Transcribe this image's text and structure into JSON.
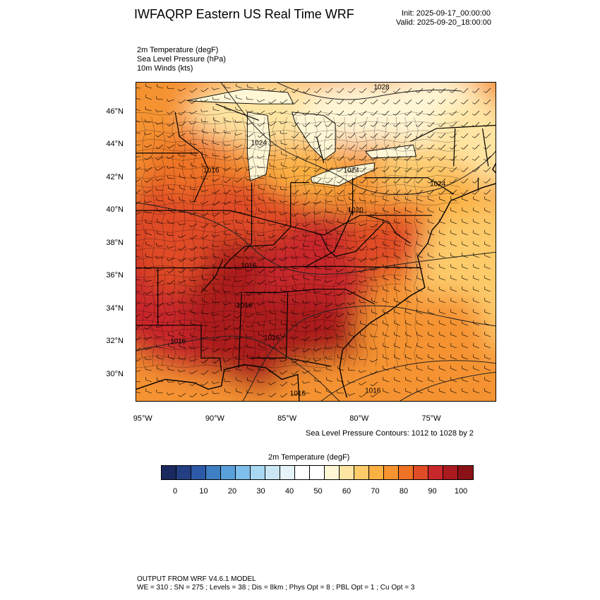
{
  "header": {
    "title": "IWFAQRP Eastern US Real Time WRF",
    "init": "Init: 2025-09-17_00:00:00",
    "valid": "Valid: 2025-09-20_18:00:00"
  },
  "fields": {
    "line1": "2m Temperature   (degF)",
    "line2": "Sea Level Pressure   (hPa)",
    "line3": "10m Winds   (kts)"
  },
  "map": {
    "lat_labels": [
      "46°N",
      "44°N",
      "42°N",
      "40°N",
      "38°N",
      "36°N",
      "34°N",
      "32°N",
      "30°N"
    ],
    "lat_values": [
      46,
      44,
      42,
      40,
      38,
      36,
      34,
      32,
      30
    ],
    "lon_labels": [
      "95°W",
      "90°W",
      "85°W",
      "80°W",
      "75°W"
    ],
    "lon_values": [
      -95,
      -90,
      -85,
      -80,
      -75
    ],
    "lon_range": [
      -95.5,
      -70.5
    ],
    "lat_range": [
      28.3,
      47.8
    ],
    "pressure_labels": [
      {
        "text": "1028",
        "lon": -78.5,
        "lat": 47.5
      },
      {
        "text": "1024",
        "lon": -87.0,
        "lat": 44.1
      },
      {
        "text": "1016",
        "lon": -90.3,
        "lat": 42.4
      },
      {
        "text": "1024",
        "lon": -80.6,
        "lat": 42.4
      },
      {
        "text": "1024",
        "lon": -74.6,
        "lat": 41.6
      },
      {
        "text": "1020",
        "lon": -80.3,
        "lat": 40.0
      },
      {
        "text": "1016",
        "lon": -87.7,
        "lat": 36.6
      },
      {
        "text": "1016",
        "lon": -88.0,
        "lat": 34.2
      },
      {
        "text": "1016",
        "lon": -92.6,
        "lat": 32.0
      },
      {
        "text": "1016",
        "lon": -86.1,
        "lat": 32.2
      },
      {
        "text": "1016",
        "lon": -84.3,
        "lat": 28.8
      },
      {
        "text": "1016",
        "lon": -79.1,
        "lat": 29.0
      }
    ]
  },
  "slp_note": "Sea Level Pressure Contours: 1012 to 1028 by 2",
  "colorbar": {
    "title": "2m Temperature  (degF)",
    "colors": [
      "#1a2a5e",
      "#233e82",
      "#2d5aa8",
      "#3f80c4",
      "#5aa1dc",
      "#7fbfeb",
      "#a9d8f3",
      "#cbe7f6",
      "#e6f3fa",
      "#ffffff",
      "#ffffff",
      "#fff6d5",
      "#ffe5a3",
      "#fdcb6a",
      "#fbb043",
      "#f59330",
      "#ee7326",
      "#e04c26",
      "#c8282b",
      "#ab1a1f",
      "#8a1216"
    ],
    "ticks": [
      "0",
      "10",
      "20",
      "30",
      "40",
      "50",
      "60",
      "70",
      "80",
      "90",
      "100"
    ]
  },
  "footer": {
    "line1": "OUTPUT FROM WRF V4.6.1 MODEL",
    "line2": "WE = 310 ; SN = 275 ; Levels = 38 ; Dis = 8km ; Phys Opt = 8 ; PBL Opt = 1 ; Cu Opt = 3"
  }
}
